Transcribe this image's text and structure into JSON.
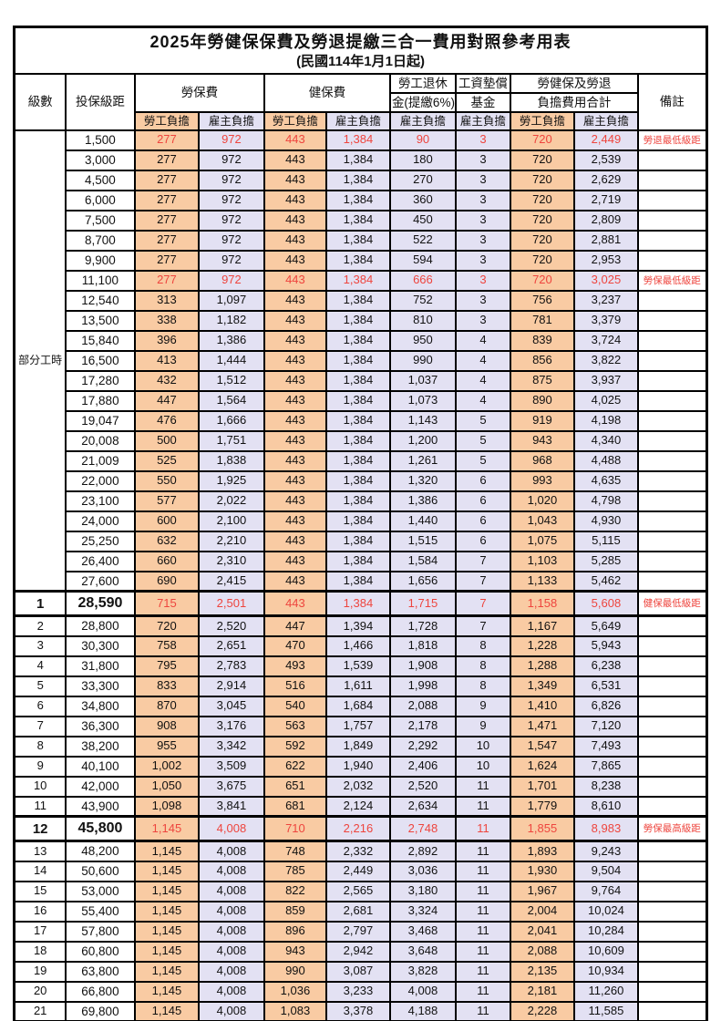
{
  "title": "2025年勞健保保費及勞退提繳三合一費用對照參考用表",
  "subtitle": "(民國114年1月1日起)",
  "header": {
    "level": "級數",
    "bracket": "投保級距",
    "labor": "勞保費",
    "health": "健保費",
    "pension_line1": "勞工退休",
    "pension_line2": "金(提繳6%)",
    "wage_fund_line1": "工資墊償",
    "wage_fund_line2": "基金",
    "total_line1": "勞健保及勞退",
    "total_line2": "負擔費用合計",
    "remark": "備註",
    "employee": "勞工負擔",
    "employer": "雇主負擔"
  },
  "part_time_label": "部分工時",
  "part_time_span": 23,
  "colors": {
    "employee_bg": "#f9cba3",
    "employer_bg": "#e3e1f3",
    "highlight_text": "#ee453e",
    "border": "#000000"
  },
  "rows": [
    {
      "level": "",
      "bracket": "1,500",
      "values": [
        "277",
        "972",
        "443",
        "1,384",
        "90",
        "3",
        "720",
        "2,449"
      ],
      "remark": "勞退最低級距",
      "highlight": true,
      "emphasis": false
    },
    {
      "level": "",
      "bracket": "3,000",
      "values": [
        "277",
        "972",
        "443",
        "1,384",
        "180",
        "3",
        "720",
        "2,539"
      ],
      "remark": "",
      "highlight": false,
      "emphasis": false
    },
    {
      "level": "",
      "bracket": "4,500",
      "values": [
        "277",
        "972",
        "443",
        "1,384",
        "270",
        "3",
        "720",
        "2,629"
      ],
      "remark": "",
      "highlight": false,
      "emphasis": false
    },
    {
      "level": "",
      "bracket": "6,000",
      "values": [
        "277",
        "972",
        "443",
        "1,384",
        "360",
        "3",
        "720",
        "2,719"
      ],
      "remark": "",
      "highlight": false,
      "emphasis": false
    },
    {
      "level": "",
      "bracket": "7,500",
      "values": [
        "277",
        "972",
        "443",
        "1,384",
        "450",
        "3",
        "720",
        "2,809"
      ],
      "remark": "",
      "highlight": false,
      "emphasis": false
    },
    {
      "level": "",
      "bracket": "8,700",
      "values": [
        "277",
        "972",
        "443",
        "1,384",
        "522",
        "3",
        "720",
        "2,881"
      ],
      "remark": "",
      "highlight": false,
      "emphasis": false
    },
    {
      "level": "",
      "bracket": "9,900",
      "values": [
        "277",
        "972",
        "443",
        "1,384",
        "594",
        "3",
        "720",
        "2,953"
      ],
      "remark": "",
      "highlight": false,
      "emphasis": false
    },
    {
      "level": "",
      "bracket": "11,100",
      "values": [
        "277",
        "972",
        "443",
        "1,384",
        "666",
        "3",
        "720",
        "3,025"
      ],
      "remark": "勞保最低級距",
      "highlight": true,
      "emphasis": false
    },
    {
      "level": "",
      "bracket": "12,540",
      "values": [
        "313",
        "1,097",
        "443",
        "1,384",
        "752",
        "3",
        "756",
        "3,237"
      ],
      "remark": "",
      "highlight": false,
      "emphasis": false
    },
    {
      "level": "",
      "bracket": "13,500",
      "values": [
        "338",
        "1,182",
        "443",
        "1,384",
        "810",
        "3",
        "781",
        "3,379"
      ],
      "remark": "",
      "highlight": false,
      "emphasis": false
    },
    {
      "level": "",
      "bracket": "15,840",
      "values": [
        "396",
        "1,386",
        "443",
        "1,384",
        "950",
        "4",
        "839",
        "3,724"
      ],
      "remark": "",
      "highlight": false,
      "emphasis": false
    },
    {
      "level": "",
      "bracket": "16,500",
      "values": [
        "413",
        "1,444",
        "443",
        "1,384",
        "990",
        "4",
        "856",
        "3,822"
      ],
      "remark": "",
      "highlight": false,
      "emphasis": false
    },
    {
      "level": "",
      "bracket": "17,280",
      "values": [
        "432",
        "1,512",
        "443",
        "1,384",
        "1,037",
        "4",
        "875",
        "3,937"
      ],
      "remark": "",
      "highlight": false,
      "emphasis": false
    },
    {
      "level": "",
      "bracket": "17,880",
      "values": [
        "447",
        "1,564",
        "443",
        "1,384",
        "1,073",
        "4",
        "890",
        "4,025"
      ],
      "remark": "",
      "highlight": false,
      "emphasis": false
    },
    {
      "level": "",
      "bracket": "19,047",
      "values": [
        "476",
        "1,666",
        "443",
        "1,384",
        "1,143",
        "5",
        "919",
        "4,198"
      ],
      "remark": "",
      "highlight": false,
      "emphasis": false
    },
    {
      "level": "",
      "bracket": "20,008",
      "values": [
        "500",
        "1,751",
        "443",
        "1,384",
        "1,200",
        "5",
        "943",
        "4,340"
      ],
      "remark": "",
      "highlight": false,
      "emphasis": false
    },
    {
      "level": "",
      "bracket": "21,009",
      "values": [
        "525",
        "1,838",
        "443",
        "1,384",
        "1,261",
        "5",
        "968",
        "4,488"
      ],
      "remark": "",
      "highlight": false,
      "emphasis": false
    },
    {
      "level": "",
      "bracket": "22,000",
      "values": [
        "550",
        "1,925",
        "443",
        "1,384",
        "1,320",
        "6",
        "993",
        "4,635"
      ],
      "remark": "",
      "highlight": false,
      "emphasis": false
    },
    {
      "level": "",
      "bracket": "23,100",
      "values": [
        "577",
        "2,022",
        "443",
        "1,384",
        "1,386",
        "6",
        "1,020",
        "4,798"
      ],
      "remark": "",
      "highlight": false,
      "emphasis": false
    },
    {
      "level": "",
      "bracket": "24,000",
      "values": [
        "600",
        "2,100",
        "443",
        "1,384",
        "1,440",
        "6",
        "1,043",
        "4,930"
      ],
      "remark": "",
      "highlight": false,
      "emphasis": false
    },
    {
      "level": "",
      "bracket": "25,250",
      "values": [
        "632",
        "2,210",
        "443",
        "1,384",
        "1,515",
        "6",
        "1,075",
        "5,115"
      ],
      "remark": "",
      "highlight": false,
      "emphasis": false
    },
    {
      "level": "",
      "bracket": "26,400",
      "values": [
        "660",
        "2,310",
        "443",
        "1,384",
        "1,584",
        "7",
        "1,103",
        "5,285"
      ],
      "remark": "",
      "highlight": false,
      "emphasis": false
    },
    {
      "level": "",
      "bracket": "27,600",
      "values": [
        "690",
        "2,415",
        "443",
        "1,384",
        "1,656",
        "7",
        "1,133",
        "5,462"
      ],
      "remark": "",
      "highlight": false,
      "emphasis": false
    },
    {
      "level": "1",
      "bracket": "28,590",
      "values": [
        "715",
        "2,501",
        "443",
        "1,384",
        "1,715",
        "7",
        "1,158",
        "5,608"
      ],
      "remark": "健保最低級距",
      "highlight": true,
      "emphasis": true
    },
    {
      "level": "2",
      "bracket": "28,800",
      "values": [
        "720",
        "2,520",
        "447",
        "1,394",
        "1,728",
        "7",
        "1,167",
        "5,649"
      ],
      "remark": "",
      "highlight": false,
      "emphasis": false
    },
    {
      "level": "3",
      "bracket": "30,300",
      "values": [
        "758",
        "2,651",
        "470",
        "1,466",
        "1,818",
        "8",
        "1,228",
        "5,943"
      ],
      "remark": "",
      "highlight": false,
      "emphasis": false
    },
    {
      "level": "4",
      "bracket": "31,800",
      "values": [
        "795",
        "2,783",
        "493",
        "1,539",
        "1,908",
        "8",
        "1,288",
        "6,238"
      ],
      "remark": "",
      "highlight": false,
      "emphasis": false
    },
    {
      "level": "5",
      "bracket": "33,300",
      "values": [
        "833",
        "2,914",
        "516",
        "1,611",
        "1,998",
        "8",
        "1,349",
        "6,531"
      ],
      "remark": "",
      "highlight": false,
      "emphasis": false
    },
    {
      "level": "6",
      "bracket": "34,800",
      "values": [
        "870",
        "3,045",
        "540",
        "1,684",
        "2,088",
        "9",
        "1,410",
        "6,826"
      ],
      "remark": "",
      "highlight": false,
      "emphasis": false
    },
    {
      "level": "7",
      "bracket": "36,300",
      "values": [
        "908",
        "3,176",
        "563",
        "1,757",
        "2,178",
        "9",
        "1,471",
        "7,120"
      ],
      "remark": "",
      "highlight": false,
      "emphasis": false
    },
    {
      "level": "8",
      "bracket": "38,200",
      "values": [
        "955",
        "3,342",
        "592",
        "1,849",
        "2,292",
        "10",
        "1,547",
        "7,493"
      ],
      "remark": "",
      "highlight": false,
      "emphasis": false
    },
    {
      "level": "9",
      "bracket": "40,100",
      "values": [
        "1,002",
        "3,509",
        "622",
        "1,940",
        "2,406",
        "10",
        "1,624",
        "7,865"
      ],
      "remark": "",
      "highlight": false,
      "emphasis": false
    },
    {
      "level": "10",
      "bracket": "42,000",
      "values": [
        "1,050",
        "3,675",
        "651",
        "2,032",
        "2,520",
        "11",
        "1,701",
        "8,238"
      ],
      "remark": "",
      "highlight": false,
      "emphasis": false
    },
    {
      "level": "11",
      "bracket": "43,900",
      "values": [
        "1,098",
        "3,841",
        "681",
        "2,124",
        "2,634",
        "11",
        "1,779",
        "8,610"
      ],
      "remark": "",
      "highlight": false,
      "emphasis": false
    },
    {
      "level": "12",
      "bracket": "45,800",
      "values": [
        "1,145",
        "4,008",
        "710",
        "2,216",
        "2,748",
        "11",
        "1,855",
        "8,983"
      ],
      "remark": "勞保最高級距",
      "highlight": true,
      "emphasis": true
    },
    {
      "level": "13",
      "bracket": "48,200",
      "values": [
        "1,145",
        "4,008",
        "748",
        "2,332",
        "2,892",
        "11",
        "1,893",
        "9,243"
      ],
      "remark": "",
      "highlight": false,
      "emphasis": false
    },
    {
      "level": "14",
      "bracket": "50,600",
      "values": [
        "1,145",
        "4,008",
        "785",
        "2,449",
        "3,036",
        "11",
        "1,930",
        "9,504"
      ],
      "remark": "",
      "highlight": false,
      "emphasis": false
    },
    {
      "level": "15",
      "bracket": "53,000",
      "values": [
        "1,145",
        "4,008",
        "822",
        "2,565",
        "3,180",
        "11",
        "1,967",
        "9,764"
      ],
      "remark": "",
      "highlight": false,
      "emphasis": false
    },
    {
      "level": "16",
      "bracket": "55,400",
      "values": [
        "1,145",
        "4,008",
        "859",
        "2,681",
        "3,324",
        "11",
        "2,004",
        "10,024"
      ],
      "remark": "",
      "highlight": false,
      "emphasis": false
    },
    {
      "level": "17",
      "bracket": "57,800",
      "values": [
        "1,145",
        "4,008",
        "896",
        "2,797",
        "3,468",
        "11",
        "2,041",
        "10,284"
      ],
      "remark": "",
      "highlight": false,
      "emphasis": false
    },
    {
      "level": "18",
      "bracket": "60,800",
      "values": [
        "1,145",
        "4,008",
        "943",
        "2,942",
        "3,648",
        "11",
        "2,088",
        "10,609"
      ],
      "remark": "",
      "highlight": false,
      "emphasis": false
    },
    {
      "level": "19",
      "bracket": "63,800",
      "values": [
        "1,145",
        "4,008",
        "990",
        "3,087",
        "3,828",
        "11",
        "2,135",
        "10,934"
      ],
      "remark": "",
      "highlight": false,
      "emphasis": false
    },
    {
      "level": "20",
      "bracket": "66,800",
      "values": [
        "1,145",
        "4,008",
        "1,036",
        "3,233",
        "4,008",
        "11",
        "2,181",
        "11,260"
      ],
      "remark": "",
      "highlight": false,
      "emphasis": false
    },
    {
      "level": "21",
      "bracket": "69,800",
      "values": [
        "1,145",
        "4,008",
        "1,083",
        "3,378",
        "4,188",
        "11",
        "2,228",
        "11,585"
      ],
      "remark": "",
      "highlight": false,
      "emphasis": false
    }
  ]
}
